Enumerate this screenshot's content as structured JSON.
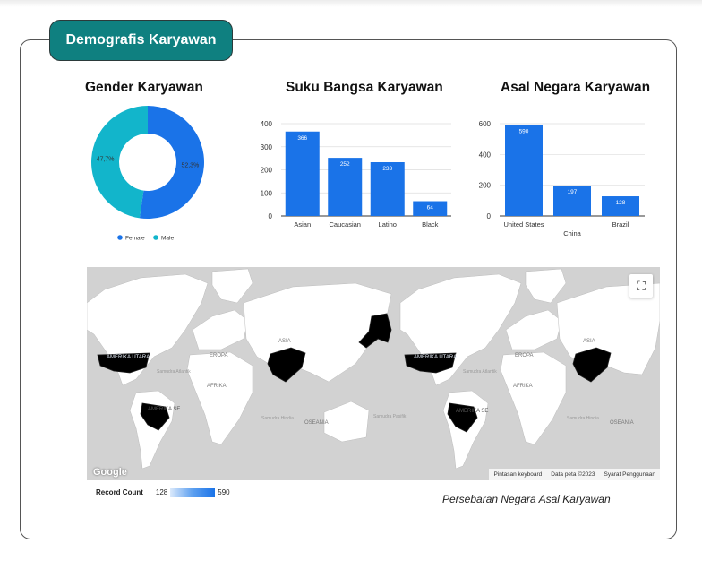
{
  "header": {
    "title": "Demografis Karyawan"
  },
  "gender": {
    "title": "Gender Karyawan",
    "chart_data": {
      "type": "pie",
      "labels": [
        "Female",
        "Male"
      ],
      "values": [
        52.3,
        47.7
      ],
      "value_labels": [
        "52,3%",
        "47,7%"
      ],
      "colors": [
        "#1a73e8",
        "#12b5cb"
      ],
      "legend_position": "bottom"
    }
  },
  "suku": {
    "title": "Suku Bangsa Karyawan",
    "chart_data": {
      "type": "bar",
      "categories": [
        "Asian",
        "Caucasian",
        "Latino",
        "Black"
      ],
      "values": [
        366,
        252,
        233,
        64
      ],
      "ylim": [
        0,
        400
      ],
      "yticks": [
        0,
        100,
        200,
        300,
        400
      ],
      "color": "#1a73e8",
      "grid": true
    }
  },
  "negara": {
    "title": "Asal Negara Karyawan",
    "chart_data": {
      "type": "bar",
      "categories": [
        "United States",
        "China",
        "Brazil"
      ],
      "values": [
        590,
        197,
        128
      ],
      "ylim": [
        0,
        600
      ],
      "yticks": [
        0,
        200,
        400,
        600
      ],
      "color": "#1a73e8",
      "grid": true
    }
  },
  "map": {
    "labels": {
      "amerika_utara": "AMERIKA UTARA",
      "amerika_selatan": "AMERIKA SE",
      "eropa": "EROPA",
      "asia": "ASIA",
      "afrika": "AFRIKA",
      "oseania": "OSEANIA",
      "samudra_atlantik": "Samudra Atlantik",
      "samudra_hindia": "Samudra Hindia",
      "samudra_pasifik": "Samudra Pasifik"
    },
    "footer": {
      "keyboard": "Pintasan keyboard",
      "data": "Data peta ©2023",
      "terms": "Syarat Penggunaan"
    },
    "google_logo": "Google",
    "legend": {
      "title": "Record Count",
      "min": "128",
      "max": "590"
    },
    "caption": "Persebaran Negara Asal Karyawan",
    "colors": {
      "high": "#5da0f0",
      "low": "#dbe9fb",
      "land": "#ffffff",
      "water": "#d2d2d2"
    }
  }
}
